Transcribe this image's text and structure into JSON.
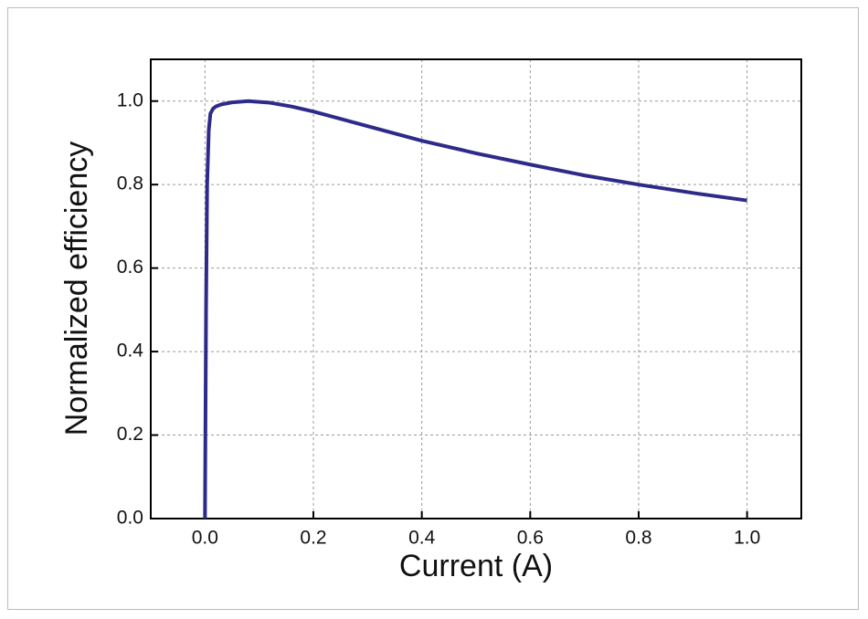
{
  "chart_data": {
    "type": "line",
    "xlabel": "Current (A)",
    "ylabel": "Normalized efficiency",
    "x": [
      0,
      0.002,
      0.004,
      0.007,
      0.01,
      0.015,
      0.02,
      0.03,
      0.05,
      0.08,
      0.12,
      0.16,
      0.2,
      0.3,
      0.4,
      0.5,
      0.6,
      0.7,
      0.8,
      0.9,
      1.0
    ],
    "series": [
      {
        "name": "Normalized efficiency",
        "color": "#2e2a8a",
        "values": [
          0,
          0.5,
          0.8,
          0.93,
          0.97,
          0.982,
          0.987,
          0.992,
          0.997,
          1.0,
          0.996,
          0.987,
          0.975,
          0.94,
          0.905,
          0.875,
          0.848,
          0.822,
          0.8,
          0.78,
          0.762
        ]
      }
    ],
    "xlim": [
      -0.1,
      1.1
    ],
    "ylim": [
      0,
      1.1
    ],
    "xticks": [
      {
        "value": 0,
        "label": "0.0"
      },
      0.2,
      0.4,
      0.6,
      0.8,
      {
        "value": 1,
        "label": "1.0"
      }
    ],
    "yticks": [
      {
        "value": 0,
        "label": "0.0"
      },
      0.2,
      0.4,
      0.6,
      0.8,
      {
        "value": 1,
        "label": "1.0"
      }
    ],
    "grid": true
  }
}
